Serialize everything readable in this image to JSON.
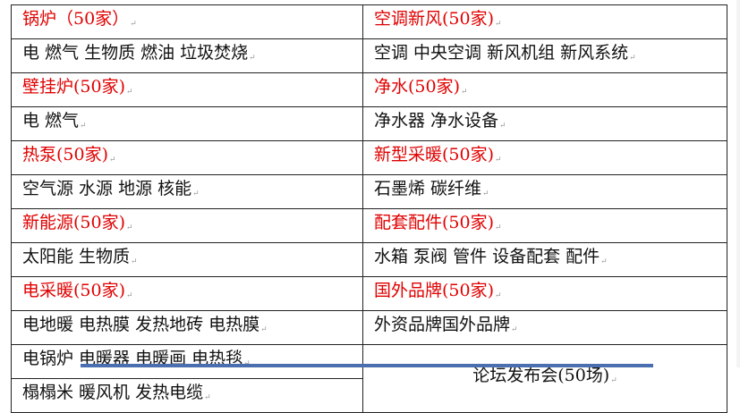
{
  "table": {
    "rows": [
      {
        "left": {
          "text": "锅炉（50家）",
          "heading": true
        },
        "right": {
          "text": "空调新风(50家)",
          "heading": true
        }
      },
      {
        "left": {
          "text": "电 燃气 生物质 燃油 垃圾焚烧",
          "heading": false
        },
        "right": {
          "text": "空调 中央空调 新风机组 新风系统",
          "heading": false
        }
      },
      {
        "left": {
          "text": "壁挂炉(50家)",
          "heading": true
        },
        "right": {
          "text": "净水(50家)",
          "heading": true
        }
      },
      {
        "left": {
          "text": "电 燃气",
          "heading": false
        },
        "right": {
          "text": "净水器 净水设备",
          "heading": false
        }
      },
      {
        "left": {
          "text": "热泵(50家)",
          "heading": true
        },
        "right": {
          "text": "新型采暖(50家)",
          "heading": true
        }
      },
      {
        "left": {
          "text": "空气源 水源 地源 核能",
          "heading": false
        },
        "right": {
          "text": "石墨烯 碳纤维",
          "heading": false
        }
      },
      {
        "left": {
          "text": "新能源(50家)",
          "heading": true
        },
        "right": {
          "text": "配套配件(50家)",
          "heading": true
        }
      },
      {
        "left": {
          "text": "太阳能 生物质",
          "heading": false
        },
        "right": {
          "text": "水箱 泵阀 管件 设备配套 配件",
          "heading": false
        }
      },
      {
        "left": {
          "text": "电采暖(50家)",
          "heading": true
        },
        "right": {
          "text": "国外品牌(50家)",
          "heading": true
        }
      },
      {
        "left": {
          "text": "电地暖 电热膜 发热地砖 电热膜",
          "heading": false
        },
        "right": {
          "text": "外资品牌国外品牌",
          "heading": false
        }
      },
      {
        "left": {
          "text": "电锅炉 电暖器 电暖画 电热毯",
          "heading": false
        },
        "right": {
          "text": "论坛发布会(50场)",
          "heading": false,
          "rowspan": 2
        }
      },
      {
        "left": {
          "text": "榻榻米 暖风机 发热电缆",
          "heading": false
        }
      }
    ]
  },
  "colors": {
    "heading": "#e00000",
    "text": "#111111",
    "border": "#222222"
  }
}
